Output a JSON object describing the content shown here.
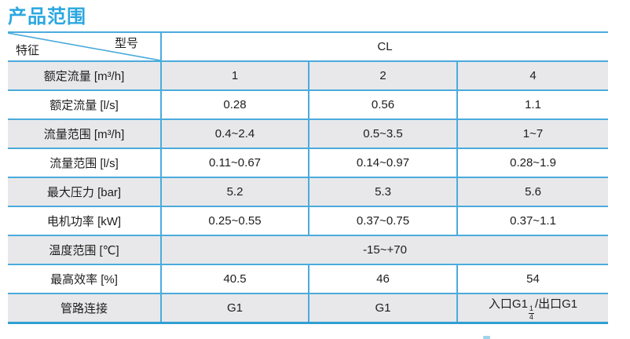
{
  "page_title": "产品范围",
  "table": {
    "corner": {
      "top_right": "型号",
      "bottom_left": "特征"
    },
    "model_header": "CL",
    "rows": [
      {
        "label": "额定流量 [m³/h]",
        "values": [
          "1",
          "2",
          "4"
        ]
      },
      {
        "label": "额定流量 [l/s]",
        "values": [
          "0.28",
          "0.56",
          "1.1"
        ]
      },
      {
        "label": "流量范围 [m³/h]",
        "values": [
          "0.4~2.4",
          "0.5~3.5",
          "1~7"
        ]
      },
      {
        "label": "流量范围 [l/s]",
        "values": [
          "0.11~0.67",
          "0.14~0.97",
          "0.28~1.9"
        ]
      },
      {
        "label": "最大压力 [bar]",
        "values": [
          "5.2",
          "5.3",
          "5.6"
        ]
      },
      {
        "label": "电机功率 [kW]",
        "values": [
          "0.25~0.55",
          "0.37~0.75",
          "0.37~1.1"
        ]
      },
      {
        "label": "温度范围 [℃]",
        "span_value": "-15~+70"
      },
      {
        "label": "最高效率 [%]",
        "values": [
          "40.5",
          "46",
          "54"
        ]
      },
      {
        "label": "管路连接",
        "values": [
          "G1",
          "G1",
          {
            "pre": "入口G1",
            "num": "1",
            "den": "4",
            "post": "/出口G1"
          }
        ]
      }
    ],
    "colors": {
      "title_blue": "#2ba7e0",
      "grid_blue": "#4babdc",
      "bottom_border_blue": "#2f9fd4",
      "row_gray": "#e8e8ea",
      "text": "#1d1d1d"
    }
  }
}
